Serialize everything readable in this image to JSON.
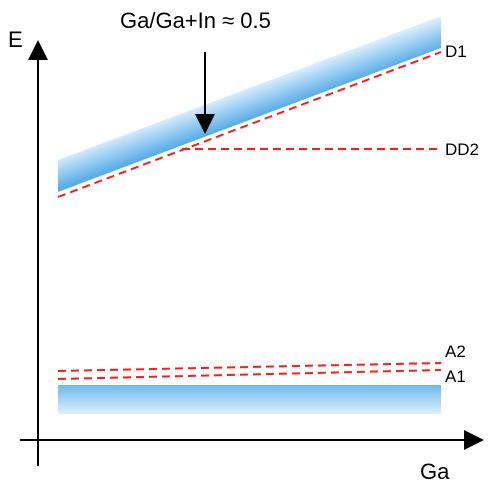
{
  "axes": {
    "y_label": "E",
    "x_label": "Ga"
  },
  "annotation": {
    "text": "Ga/Ga+In ≈ 0.5"
  },
  "levels": [
    {
      "id": "D1",
      "label": "D1"
    },
    {
      "id": "DD2",
      "label": "DD2"
    },
    {
      "id": "A2",
      "label": "A2"
    },
    {
      "id": "A1",
      "label": "A1"
    }
  ],
  "colors": {
    "band_edge": "#5aaee8",
    "band_light": "#d6ecfb",
    "level_line": "#ff1a1a",
    "axis": "#000000"
  }
}
